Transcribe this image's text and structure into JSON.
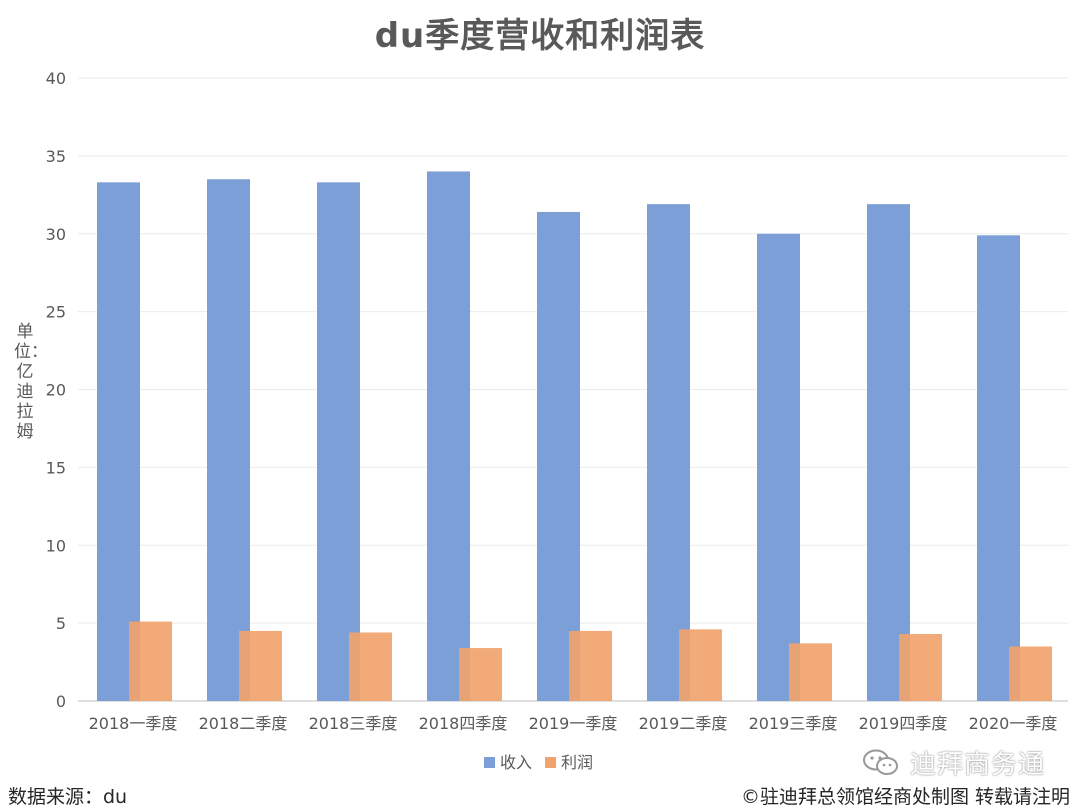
{
  "chart_data": {
    "type": "bar",
    "title": "du季度营收和利润表",
    "ylabel": "单位：亿迪拉姆",
    "xlabel": "",
    "ylim": [
      0,
      40
    ],
    "yticks": [
      0,
      5,
      10,
      15,
      20,
      25,
      30,
      35,
      40
    ],
    "grid": true,
    "legend_position": "bottom",
    "categories": [
      "2018一季度",
      "2018二季度",
      "2018三季度",
      "2018四季度",
      "2019一季度",
      "2019二季度",
      "2019三季度",
      "2019四季度",
      "2020一季度"
    ],
    "series": [
      {
        "name": "收入",
        "color": "#7b9fd6",
        "values": [
          33.3,
          33.5,
          33.3,
          34.0,
          31.4,
          31.9,
          30.0,
          31.9,
          29.9
        ]
      },
      {
        "name": "利润",
        "color": "#f0a36d",
        "values": [
          5.1,
          4.5,
          4.4,
          3.4,
          4.5,
          4.6,
          3.7,
          4.3,
          3.5
        ]
      }
    ]
  },
  "footer": {
    "source": "数据来源：du",
    "copyright": "©驻迪拜总领馆经商处制图 转载请注明"
  },
  "watermark": {
    "text": "迪拜商务通",
    "icon": "wechat-icon"
  }
}
